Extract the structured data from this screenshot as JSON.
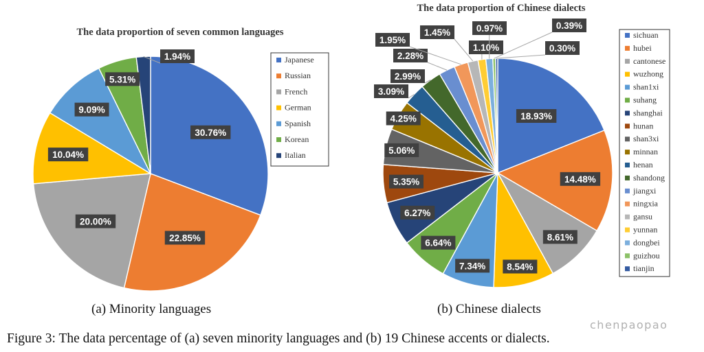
{
  "chart_data": [
    {
      "type": "pie",
      "title": "The data proportion of seven common languages",
      "categories": [
        "Japanese",
        "Russian",
        "French",
        "German",
        "Spanish",
        "Korean",
        "Italian"
      ],
      "values": [
        30.76,
        22.85,
        20.0,
        10.04,
        9.09,
        5.31,
        1.94
      ],
      "labels": [
        "30.76%",
        "22.85%",
        "20.00%",
        "10.04%",
        "9.09%",
        "5.31%",
        "1.94%"
      ],
      "colors": [
        "#4472c4",
        "#ed7d31",
        "#a5a5a5",
        "#ffc000",
        "#5b9bd5",
        "#70ad47",
        "#264478"
      ],
      "legend": "right",
      "subcaption": "(a) Minority languages"
    },
    {
      "type": "pie",
      "title": "The data proportion of Chinese dialects",
      "categories": [
        "sichuan",
        "hubei",
        "cantonese",
        "wuzhong",
        "shan1xi",
        "suhang",
        "shanghai",
        "hunan",
        "shan3xi",
        "minnan",
        "henan",
        "shandong",
        "jiangxi",
        "ningxia",
        "gansu",
        "yunnan",
        "dongbei",
        "guizhou",
        "tianjin"
      ],
      "values": [
        18.93,
        14.48,
        8.61,
        8.54,
        7.34,
        6.64,
        6.27,
        5.35,
        5.06,
        4.25,
        3.09,
        2.99,
        2.28,
        1.95,
        1.45,
        1.1,
        0.97,
        0.39,
        0.3
      ],
      "labels": [
        "18.93%",
        "14.48%",
        "8.61%",
        "8.54%",
        "7.34%",
        "6.64%",
        "6.27%",
        "5.35%",
        "5.06%",
        "4.25%",
        "3.09%",
        "2.99%",
        "2.28%",
        "1.95%",
        "1.45%",
        "1.10%",
        "0.97%",
        "0.39%",
        "0.30%"
      ],
      "colors": [
        "#4472c4",
        "#ed7d31",
        "#a5a5a5",
        "#ffc000",
        "#5b9bd5",
        "#70ad47",
        "#264478",
        "#9e480e",
        "#636363",
        "#997300",
        "#255e91",
        "#43682b",
        "#698ed0",
        "#f1975a",
        "#b7b7b7",
        "#ffcd33",
        "#7cafdd",
        "#8cc168",
        "#335aa1"
      ],
      "legend": "right",
      "subcaption": "(b) Chinese dialects"
    }
  ],
  "figure_caption": "Figure 3: The data percentage of (a) seven minority languages and (b) 19 Chinese accents or dialects.",
  "watermark": "chenpaopao"
}
